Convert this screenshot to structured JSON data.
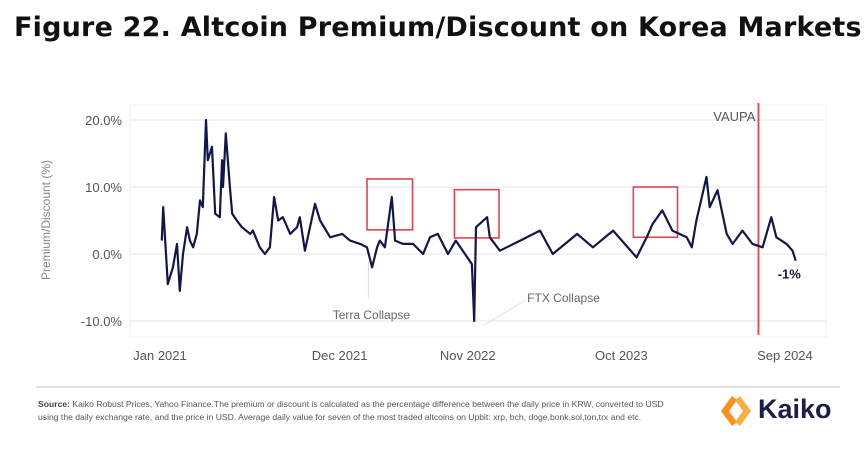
{
  "title": "Figure 22. Altcoin Premium/Discount on Korea Markets",
  "chart_data": {
    "type": "line",
    "title": "",
    "xlabel": "",
    "ylabel": "Premium/Discount (%)",
    "ylim": [
      -10,
      20
    ],
    "xlim": [
      "2021-01-01",
      "2024-10-15"
    ],
    "grid": true,
    "y_ticks": [
      {
        "v": 20,
        "label": "20.0%"
      },
      {
        "v": 10,
        "label": "10.0%"
      },
      {
        "v": 0,
        "label": "0.0%"
      },
      {
        "v": -10,
        "label": "-10.0%"
      }
    ],
    "x_ticks": [
      {
        "d": "2021-01-01",
        "label": "Jan 2021"
      },
      {
        "d": "2021-12-01",
        "label": "Dec 2021"
      },
      {
        "d": "2022-11-01",
        "label": "Nov 2022"
      },
      {
        "d": "2023-10-01",
        "label": "Oct 2023"
      },
      {
        "d": "2024-09-01",
        "label": "Sep 2024"
      }
    ],
    "series": [
      {
        "color": "#14164a",
        "points": [
          [
            "2021-01-05",
            2
          ],
          [
            "2021-01-08",
            7
          ],
          [
            "2021-01-18",
            -4.5
          ],
          [
            "2021-01-29",
            -2
          ],
          [
            "2021-02-07",
            1.5
          ],
          [
            "2021-02-13",
            -5.5
          ],
          [
            "2021-02-20",
            0
          ],
          [
            "2021-03-01",
            4
          ],
          [
            "2021-03-07",
            2
          ],
          [
            "2021-03-14",
            1
          ],
          [
            "2021-03-22",
            3
          ],
          [
            "2021-03-29",
            8
          ],
          [
            "2021-04-04",
            7
          ],
          [
            "2021-04-11",
            20
          ],
          [
            "2021-04-15",
            14
          ],
          [
            "2021-04-24",
            16
          ],
          [
            "2021-05-01",
            6
          ],
          [
            "2021-05-11",
            5.5
          ],
          [
            "2021-05-16",
            14
          ],
          [
            "2021-05-18",
            10
          ],
          [
            "2021-05-24",
            18
          ],
          [
            "2021-06-02",
            10
          ],
          [
            "2021-06-07",
            6
          ],
          [
            "2021-06-17",
            5
          ],
          [
            "2021-06-28",
            4
          ],
          [
            "2021-07-16",
            3
          ],
          [
            "2021-07-22",
            3.5
          ],
          [
            "2021-08-06",
            1
          ],
          [
            "2021-08-17",
            0
          ],
          [
            "2021-08-28",
            1
          ],
          [
            "2021-09-06",
            8.5
          ],
          [
            "2021-09-15",
            5
          ],
          [
            "2021-09-25",
            5.5
          ],
          [
            "2021-10-11",
            3
          ],
          [
            "2021-10-26",
            4
          ],
          [
            "2021-11-01",
            5.5
          ],
          [
            "2021-11-12",
            0.5
          ],
          [
            "2021-11-23",
            4
          ],
          [
            "2021-12-04",
            7.5
          ],
          [
            "2021-12-15",
            5
          ],
          [
            "2022-01-06",
            2.5
          ],
          [
            "2022-02-01",
            3
          ],
          [
            "2022-02-18",
            2
          ],
          [
            "2022-03-12",
            1.5
          ],
          [
            "2022-03-27",
            1
          ],
          [
            "2022-04-07",
            -2
          ],
          [
            "2022-04-18",
            1
          ],
          [
            "2022-04-24",
            2
          ],
          [
            "2022-05-05",
            1
          ],
          [
            "2022-05-20",
            8.5
          ],
          [
            "2022-05-27",
            2
          ],
          [
            "2022-06-13",
            1.5
          ],
          [
            "2022-07-05",
            1.5
          ],
          [
            "2022-07-27",
            0
          ],
          [
            "2022-08-11",
            2.5
          ],
          [
            "2022-08-28",
            3
          ],
          [
            "2022-09-19",
            0
          ],
          [
            "2022-10-06",
            2
          ],
          [
            "2022-11-10",
            -1.5
          ],
          [
            "2022-11-15",
            -10
          ],
          [
            "2022-11-19",
            4
          ],
          [
            "2022-12-13",
            5.5
          ],
          [
            "2022-12-19",
            2.5
          ],
          [
            "2023-01-10",
            0.5
          ],
          [
            "2023-02-23",
            2
          ],
          [
            "2023-04-07",
            3.5
          ],
          [
            "2023-05-05",
            0
          ],
          [
            "2023-06-27",
            3
          ],
          [
            "2023-07-31",
            1
          ],
          [
            "2023-09-13",
            3.5
          ],
          [
            "2023-11-03",
            -0.5
          ],
          [
            "2023-11-25",
            2.5
          ],
          [
            "2023-12-08",
            4.5
          ],
          [
            "2023-12-29",
            6.5
          ],
          [
            "2024-01-20",
            3.5
          ],
          [
            "2024-02-20",
            2.5
          ],
          [
            "2024-03-02",
            1
          ],
          [
            "2024-03-12",
            5
          ],
          [
            "2024-04-03",
            11.5
          ],
          [
            "2024-04-10",
            7
          ],
          [
            "2024-04-27",
            9.5
          ],
          [
            "2024-05-17",
            3
          ],
          [
            "2024-05-30",
            1.5
          ],
          [
            "2024-06-20",
            3.5
          ],
          [
            "2024-07-12",
            1.5
          ],
          [
            "2024-08-03",
            1
          ],
          [
            "2024-08-22",
            5.5
          ],
          [
            "2024-09-02",
            2.5
          ],
          [
            "2024-09-24",
            1.5
          ],
          [
            "2024-10-07",
            0.5
          ],
          [
            "2024-10-14",
            -1
          ]
        ]
      }
    ],
    "highlight_boxes": [
      {
        "from": "2022-03-27",
        "to": "2022-07-04",
        "ymin": 3.6,
        "ymax": 11.2
      },
      {
        "from": "2022-10-03",
        "to": "2023-01-08",
        "ymin": 2.4,
        "ymax": 9.6
      },
      {
        "from": "2023-10-27",
        "to": "2024-01-31",
        "ymin": 2.5,
        "ymax": 10
      }
    ],
    "vline": {
      "date": "2024-07-25",
      "label": "VAUPA",
      "color": "#e0454f"
    },
    "annotations": [
      {
        "label": "Terra Collapse",
        "date": "2022-03-30"
      },
      {
        "label": "FTX Collapse",
        "date": "2022-11-15"
      }
    ],
    "end_label": "-1%",
    "box_color": "#e0454f"
  },
  "footer": {
    "source_label": "Source:",
    "source_text": " Kaiko Robust Prices, Yahoo Finance.The premium or discount is calculated as the percentage difference between the daily price in KRW, converted to USD using the daily exchange rate, and the price in USD. Average daily value for seven of the most traded altcoins on Upbit: xrp, bch, doge,bonk,sol,ton,trx and etc.",
    "logo_text": "Kaiko"
  },
  "colors": {
    "accent": "#f7931e",
    "line": "#14164a"
  }
}
